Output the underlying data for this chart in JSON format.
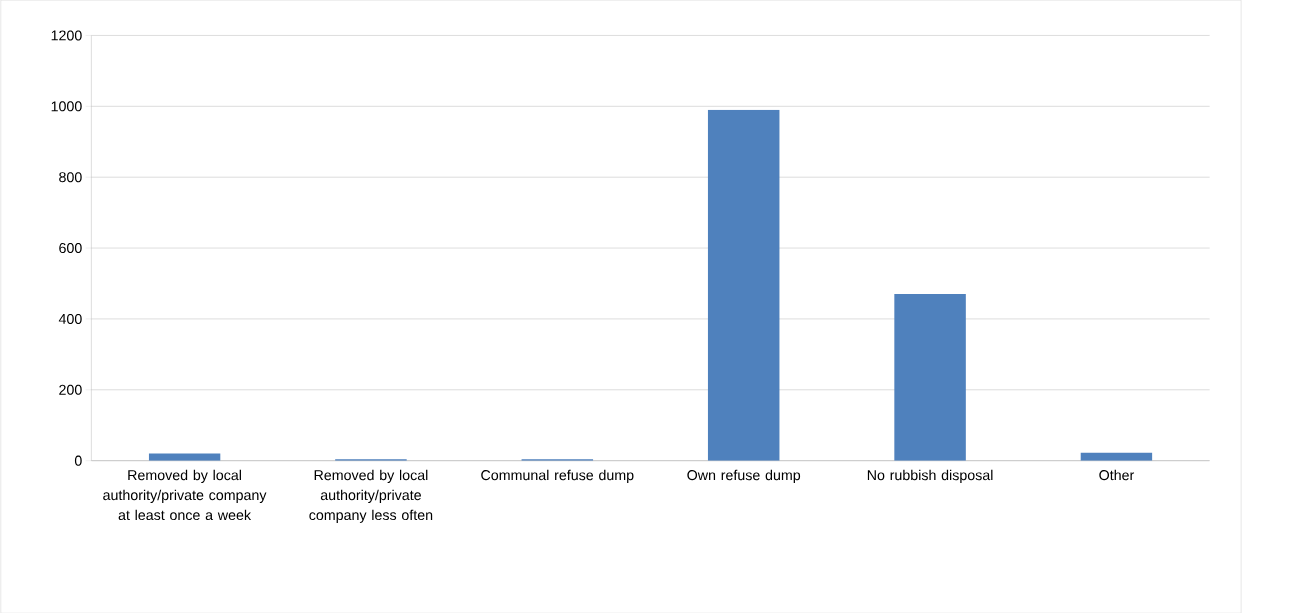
{
  "chart_data": {
    "type": "bar",
    "categories": [
      "Removed by local authority/private company at least once a week",
      "Removed by local authority/private company less often",
      "Communal refuse dump",
      "Own refuse dump",
      "No rubbish disposal",
      "Other"
    ],
    "values": [
      20,
      4,
      4,
      990,
      470,
      22
    ],
    "color": "#4f81bd",
    "ylim": [
      0,
      1200
    ],
    "yticks": [
      0,
      200,
      400,
      600,
      800,
      1000,
      1200
    ],
    "grid": "y"
  }
}
